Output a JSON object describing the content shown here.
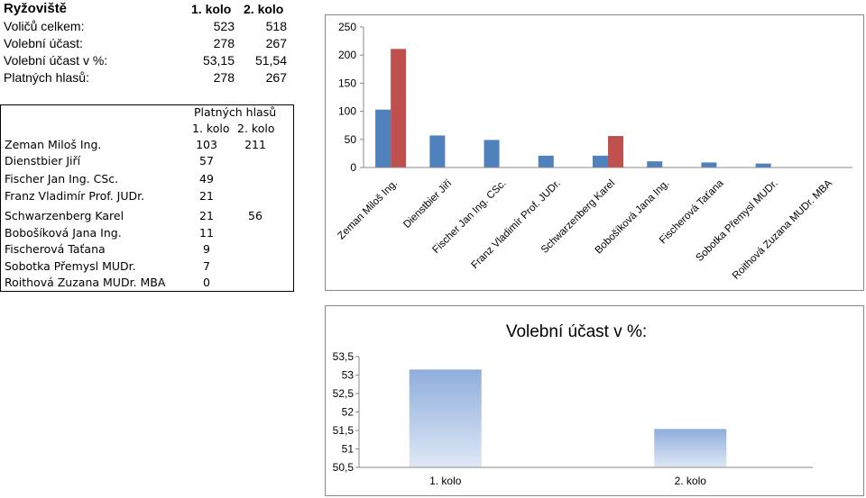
{
  "summary": {
    "title": "Ryžoviště",
    "col1": "1. kolo",
    "col2": "2. kolo",
    "rows": [
      {
        "label": "Voličů celkem:",
        "v1": "523",
        "v2": "518"
      },
      {
        "label": "Volební účast:",
        "v1": "278",
        "v2": "267"
      },
      {
        "label": "Volební účast v %:",
        "v1": "53,15",
        "v2": "51,54"
      },
      {
        "label": "Platných hlasů:",
        "v1": "278",
        "v2": "267"
      }
    ]
  },
  "candidates": {
    "header": "Platných hlasů",
    "col1": "1. kolo",
    "col2": "2. kolo",
    "rows": [
      {
        "name": "Zeman Miloš Ing.",
        "v1": "103",
        "v2": "211"
      },
      {
        "name": "Dienstbier Jiří",
        "v1": "57",
        "v2": ""
      },
      {
        "name": "Fischer Jan Ing. CSc.",
        "v1": "49",
        "v2": ""
      },
      {
        "name": "Franz Vladimír Prof. JUDr.",
        "v1": "21",
        "v2": ""
      },
      {
        "name": "Schwarzenberg Karel",
        "v1": "21",
        "v2": "56"
      },
      {
        "name": "Bobošíková Jana Ing.",
        "v1": "11",
        "v2": ""
      },
      {
        "name": "Fischerová Taťana",
        "v1": "9",
        "v2": ""
      },
      {
        "name": "Sobotka Přemysl MUDr.",
        "v1": "7",
        "v2": ""
      },
      {
        "name": "Roithová Zuzana MUDr. MBA",
        "v1": "0",
        "v2": ""
      }
    ]
  },
  "chart_data": [
    {
      "type": "bar",
      "title": "",
      "categories": [
        "Zeman Miloš Ing.",
        "Dienstbier Jiří",
        "Fischer Jan Ing. CSc.",
        "Franz Vladimír Prof. JUDr.",
        "Schwarzenberg Karel",
        "Bobošíková Jana Ing.",
        "Fischerová Taťana",
        "Sobotka Přemysl MUDr.",
        "Roithová Zuzana MUDr. MBA"
      ],
      "series": [
        {
          "values": [
            103,
            57,
            49,
            21,
            21,
            11,
            9,
            7,
            0
          ],
          "color": "#4f81bd"
        },
        {
          "values": [
            211,
            null,
            null,
            null,
            56,
            null,
            null,
            null,
            null
          ],
          "color": "#c0504d"
        }
      ],
      "ylim": [
        0,
        250
      ],
      "yticks": [
        "0",
        "50",
        "100",
        "150",
        "200",
        "250"
      ],
      "legend": "none",
      "grid": false
    },
    {
      "type": "bar",
      "title": "Volební účast v %:",
      "categories": [
        "1. kolo",
        "2. kolo"
      ],
      "values": [
        53.15,
        51.54
      ],
      "ylim": [
        50.5,
        53.5
      ],
      "yticks": [
        "50,5",
        "51",
        "51,5",
        "52",
        "52,5",
        "53",
        "53,5"
      ],
      "color": "#95b3d7",
      "legend": "none",
      "grid": false
    }
  ]
}
